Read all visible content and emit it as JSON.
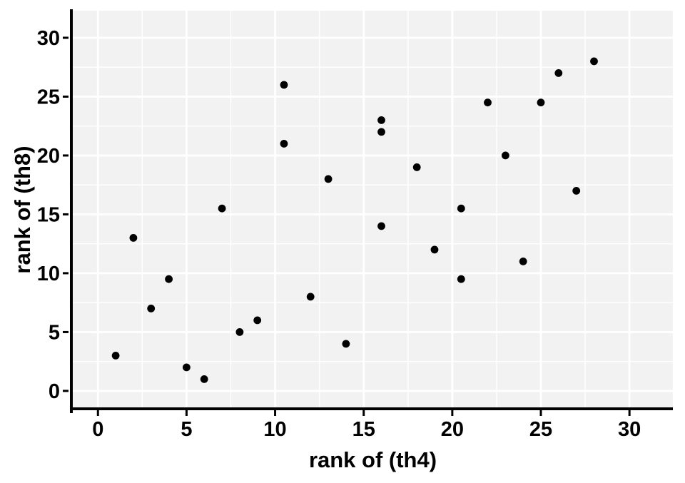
{
  "chart_data": {
    "type": "scatter",
    "title": "",
    "xlabel": "rank of (th4)",
    "ylabel": "rank of (th8)",
    "xlim": [
      -1.42,
      32.45
    ],
    "ylim": [
      -1.52,
      32.3
    ],
    "x_ticks": [
      0,
      5,
      10,
      15,
      20,
      25,
      30
    ],
    "y_ticks": [
      0,
      5,
      10,
      15,
      20,
      25,
      30
    ],
    "x_minor_gridlines": [
      2.5,
      7.5,
      12.5,
      17.5,
      22.5,
      27.5
    ],
    "y_minor_gridlines": [
      2.5,
      7.5,
      12.5,
      17.5,
      22.5,
      27.5
    ],
    "grid": "major+minor",
    "legend": "none",
    "panel_background": "#F2F2F2",
    "grid_color": "#FFFFFF",
    "point_color": "#000000",
    "axis_color": "#000000",
    "points": [
      {
        "x": 1,
        "y": 3
      },
      {
        "x": 2,
        "y": 13
      },
      {
        "x": 3,
        "y": 7
      },
      {
        "x": 4,
        "y": 9.5
      },
      {
        "x": 5,
        "y": 2
      },
      {
        "x": 6,
        "y": 1
      },
      {
        "x": 7,
        "y": 15.5
      },
      {
        "x": 8,
        "y": 5
      },
      {
        "x": 9,
        "y": 6
      },
      {
        "x": 10.5,
        "y": 26
      },
      {
        "x": 10.5,
        "y": 21
      },
      {
        "x": 12,
        "y": 8
      },
      {
        "x": 13,
        "y": 18
      },
      {
        "x": 14,
        "y": 4
      },
      {
        "x": 16,
        "y": 23
      },
      {
        "x": 16,
        "y": 22
      },
      {
        "x": 16,
        "y": 14
      },
      {
        "x": 18,
        "y": 19
      },
      {
        "x": 19,
        "y": 12
      },
      {
        "x": 20.5,
        "y": 15.5
      },
      {
        "x": 20.5,
        "y": 9.5
      },
      {
        "x": 22,
        "y": 24.5
      },
      {
        "x": 23,
        "y": 20
      },
      {
        "x": 24,
        "y": 11
      },
      {
        "x": 25,
        "y": 24.5
      },
      {
        "x": 26,
        "y": 27
      },
      {
        "x": 27,
        "y": 17
      },
      {
        "x": 28,
        "y": 28
      }
    ]
  }
}
